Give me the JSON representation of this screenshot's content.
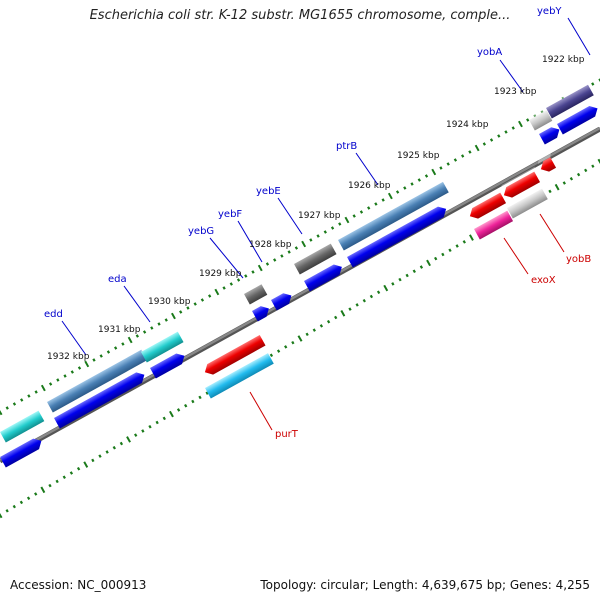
{
  "title": "Escherichia coli str. K-12 substr. MG1655 chromosome, comple...",
  "footer": {
    "accession": "Accession: NC_000913",
    "info": "Topology: circular; Length: 4,639,675 bp; Genes: 4,255"
  },
  "ticks": [
    "1922 kbp",
    "1923 kbp",
    "1924 kbp",
    "1925 kbp",
    "1926 kbp",
    "1927 kbp",
    "1928 kbp",
    "1929 kbp",
    "1930 kbp",
    "1931 kbp",
    "1932 kbp"
  ],
  "genes": [
    {
      "name": "yebY",
      "color": "#0000cc"
    },
    {
      "name": "yobA",
      "color": "#0000cc"
    },
    {
      "name": "ptrB",
      "color": "#0000cc"
    },
    {
      "name": "yebE",
      "color": "#0000cc"
    },
    {
      "name": "yebF",
      "color": "#0000cc"
    },
    {
      "name": "yebG",
      "color": "#0000cc"
    },
    {
      "name": "eda",
      "color": "#0000cc"
    },
    {
      "name": "edd",
      "color": "#0000cc"
    },
    {
      "name": "yobB",
      "color": "#cc0000"
    },
    {
      "name": "exoX",
      "color": "#cc0000"
    },
    {
      "name": "purT",
      "color": "#cc0000"
    }
  ],
  "colors": {
    "forward_strand": "#0000ee",
    "reverse_strand": "#ee0000",
    "backbone": "#888888",
    "tick_dots": "#1a7a1a"
  }
}
